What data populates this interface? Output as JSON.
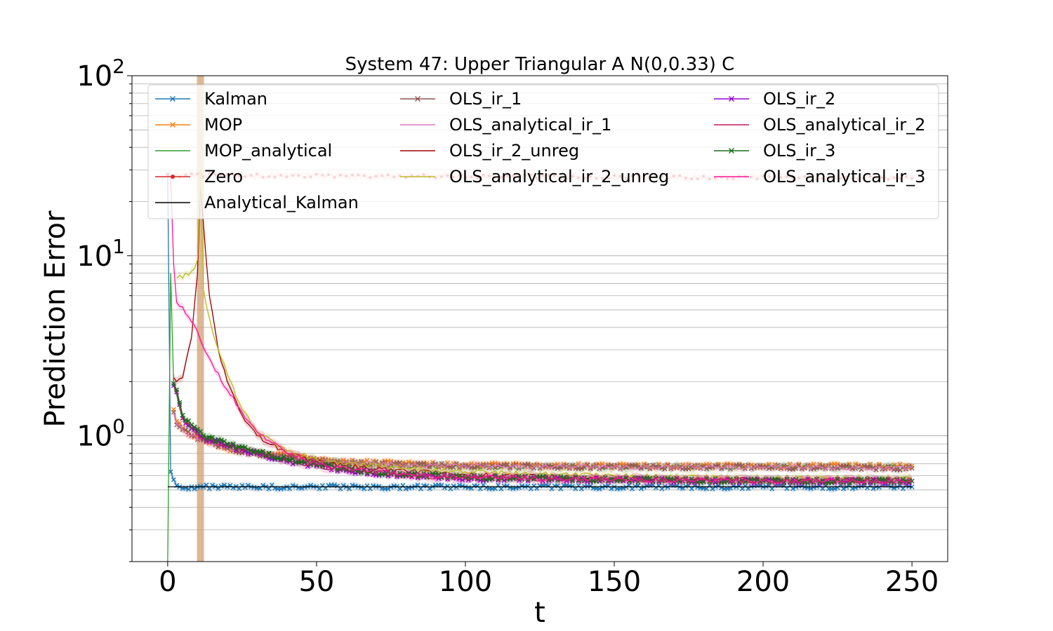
{
  "chart_data": {
    "type": "line",
    "title": "System 47: Upper Triangular A N(0,0.33) C",
    "xlabel": "t",
    "ylabel": "Prediction Error",
    "yscale": "log",
    "xlim": [
      -12,
      262
    ],
    "ylim": [
      0.2,
      100
    ],
    "x_ticks": [
      {
        "value": 0,
        "label": "0"
      },
      {
        "value": 50,
        "label": "50"
      },
      {
        "value": 100,
        "label": "100"
      },
      {
        "value": 150,
        "label": "150"
      },
      {
        "value": 200,
        "label": "200"
      },
      {
        "value": 250,
        "label": "250"
      }
    ],
    "y_ticks": [
      {
        "value": 1,
        "base": "10",
        "exp": "0"
      },
      {
        "value": 10,
        "base": "10",
        "exp": "1"
      },
      {
        "value": 100,
        "base": "10",
        "exp": "2"
      }
    ],
    "grid": "y-major-and-minor",
    "legend_position": "top",
    "legend_columns": 3,
    "vertical_band": {
      "x": 11,
      "color": "#d2a070"
    },
    "series": [
      {
        "name": "Kalman",
        "color": "#1f77b4",
        "marker": "x",
        "x": [
          0,
          1,
          2,
          3,
          5,
          8,
          12,
          20,
          40,
          60,
          100,
          150,
          200,
          250
        ],
        "y": [
          28,
          0.63,
          0.57,
          0.53,
          0.51,
          0.52,
          0.52,
          0.52,
          0.52,
          0.52,
          0.52,
          0.52,
          0.52,
          0.52
        ]
      },
      {
        "name": "MOP",
        "color": "#ff7f0e",
        "marker": "x",
        "x": [
          2,
          3,
          5,
          8,
          12,
          20,
          30,
          40,
          50,
          60,
          80,
          100,
          150,
          200,
          250
        ],
        "y": [
          1.4,
          1.2,
          1.1,
          1.0,
          0.95,
          0.85,
          0.8,
          0.77,
          0.74,
          0.72,
          0.7,
          0.69,
          0.68,
          0.68,
          0.68
        ]
      },
      {
        "name": "MOP_analytical",
        "color": "#2ca02c",
        "marker": "",
        "x": [
          0,
          1,
          2,
          3,
          5,
          8,
          12,
          20,
          30,
          40,
          50,
          60,
          80,
          100,
          150,
          200,
          250
        ],
        "y": [
          0.2,
          8,
          1.9,
          1.7,
          1.25,
          1.1,
          1.0,
          0.9,
          0.8,
          0.75,
          0.72,
          0.7,
          0.68,
          0.67,
          0.67,
          0.67,
          0.67
        ]
      },
      {
        "name": "Zero",
        "color": "#d62728",
        "marker": "o",
        "x": [
          0,
          250
        ],
        "y": [
          28,
          27
        ]
      },
      {
        "name": "Analytical_Kalman",
        "color": "#000000",
        "marker": "",
        "x": [
          0,
          250
        ],
        "y": [
          0.52,
          0.52
        ]
      },
      {
        "name": "OLS_ir_1",
        "color": "#8c564b",
        "marker": "x",
        "x": [
          2,
          3,
          5,
          8,
          12,
          20,
          30,
          40,
          50,
          60,
          80,
          100,
          150,
          200,
          250
        ],
        "y": [
          1.35,
          1.15,
          1.08,
          1.0,
          0.95,
          0.85,
          0.79,
          0.76,
          0.73,
          0.71,
          0.69,
          0.68,
          0.67,
          0.67,
          0.66
        ]
      },
      {
        "name": "OLS_analytical_ir_1",
        "color": "#e377c2",
        "marker": "",
        "x": [
          2,
          3,
          5,
          8,
          12,
          20,
          30,
          40,
          50,
          60,
          80,
          100,
          150,
          200,
          250
        ],
        "y": [
          1.35,
          1.15,
          1.08,
          1.0,
          0.95,
          0.85,
          0.79,
          0.76,
          0.73,
          0.71,
          0.69,
          0.68,
          0.67,
          0.67,
          0.66
        ]
      },
      {
        "name": "OLS_ir_2_unreg",
        "color": "#a00000",
        "marker": "",
        "x": [
          2,
          3,
          5,
          8,
          10,
          11,
          12,
          14,
          17,
          20,
          25,
          30,
          40,
          50,
          60,
          80,
          100,
          150,
          200,
          250
        ],
        "y": [
          2.1,
          2.0,
          2.1,
          3.5,
          8,
          25,
          15,
          6,
          3,
          2.0,
          1.3,
          1.0,
          0.8,
          0.72,
          0.68,
          0.64,
          0.61,
          0.58,
          0.57,
          0.57
        ]
      },
      {
        "name": "OLS_analytical_ir_2_unreg",
        "color": "#bcbd22",
        "marker": "",
        "x": [
          3,
          4,
          5,
          6,
          7,
          8,
          9,
          10,
          11,
          12,
          14,
          17,
          20,
          25,
          30,
          40,
          50,
          60,
          80,
          100,
          150,
          200,
          250
        ],
        "y": [
          7.5,
          7.8,
          7.5,
          8.0,
          7.8,
          8.2,
          8.5,
          9.5,
          30,
          6.5,
          4.5,
          3.0,
          2.2,
          1.4,
          1.05,
          0.82,
          0.74,
          0.7,
          0.66,
          0.63,
          0.6,
          0.58,
          0.58
        ]
      },
      {
        "name": "OLS_ir_2",
        "color": "#9400d3",
        "marker": "x",
        "x": [
          2,
          3,
          5,
          8,
          12,
          20,
          30,
          40,
          50,
          60,
          80,
          100,
          150,
          200,
          250
        ],
        "y": [
          1.9,
          1.75,
          1.25,
          1.1,
          0.97,
          0.88,
          0.8,
          0.72,
          0.68,
          0.64,
          0.6,
          0.58,
          0.57,
          0.56,
          0.56
        ]
      },
      {
        "name": "OLS_analytical_ir_2",
        "color": "#c2185b",
        "marker": "",
        "x": [
          2,
          3,
          5,
          8,
          12,
          20,
          30,
          40,
          50,
          60,
          80,
          100,
          150,
          200,
          250
        ],
        "y": [
          1.9,
          1.75,
          1.25,
          1.1,
          0.97,
          0.88,
          0.8,
          0.72,
          0.68,
          0.64,
          0.6,
          0.58,
          0.57,
          0.56,
          0.56
        ]
      },
      {
        "name": "OLS_ir_3",
        "color": "#1a6b1a",
        "marker": "x",
        "x": [
          2,
          3,
          5,
          8,
          12,
          20,
          30,
          40,
          50,
          60,
          80,
          100,
          150,
          200,
          250
        ],
        "y": [
          1.95,
          1.8,
          1.3,
          1.15,
          1.0,
          0.9,
          0.82,
          0.74,
          0.69,
          0.65,
          0.61,
          0.59,
          0.57,
          0.56,
          0.56
        ]
      },
      {
        "name": "OLS_analytical_ir_3",
        "color": "#ff1493",
        "marker": "",
        "x": [
          1,
          2,
          3,
          5,
          8,
          10,
          12,
          15,
          20,
          25,
          30,
          40,
          50,
          60,
          80,
          100,
          150,
          200,
          250
        ],
        "y": [
          27,
          9,
          5.5,
          5.2,
          4.3,
          3.8,
          3.1,
          2.5,
          1.8,
          1.35,
          1.05,
          0.8,
          0.7,
          0.66,
          0.61,
          0.59,
          0.57,
          0.56,
          0.56
        ]
      }
    ]
  }
}
